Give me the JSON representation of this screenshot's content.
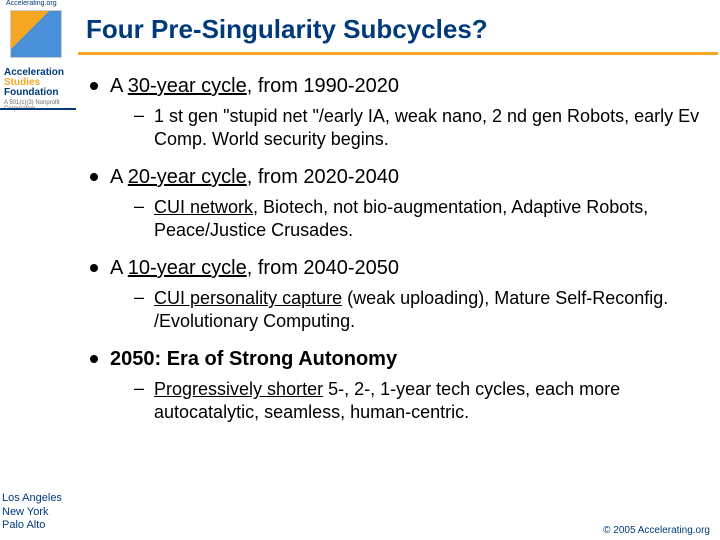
{
  "header": {
    "accelerating_label": "Accelerating.org"
  },
  "sidebar": {
    "org_line1": "Acceleration",
    "org_line2": "Studies",
    "org_line3": "Foundation",
    "org_line4": "A 501(c)(3) Nonprofit Corporation",
    "locations": [
      "Los Angeles",
      "New York",
      "Palo Alto"
    ]
  },
  "title": "Four Pre-Singularity Subcycles?",
  "bullets": [
    {
      "main_prefix": "A ",
      "main_underlined": "30-year cycle",
      "main_suffix": ", from 1990-2020",
      "sub": "1 st gen \"stupid net \"/early IA, weak nano, 2 nd gen Robots, early Ev Comp. World security begins."
    },
    {
      "main_prefix": "A ",
      "main_underlined": "20-year cycle",
      "main_suffix": ", from 2020-2040",
      "sub_underlined": "CUI network",
      "sub_rest": ", Biotech, not bio-augmentation, Adaptive Robots, Peace/Justice Crusades."
    },
    {
      "main_prefix": "A ",
      "main_underlined": "10-year cycle",
      "main_suffix": ", from 2040-2050",
      "sub_underlined": "CUI personality capture",
      "sub_rest": " (weak uploading), Mature Self-Reconfig. /Evolutionary Computing."
    },
    {
      "main_bold": "2050: Era of Strong Autonomy",
      "sub_underlined": "Progressively shorter",
      "sub_rest": " 5-, 2-, 1-year tech cycles, each more autocatalytic, seamless, human-centric."
    }
  ],
  "copyright": "© 2005 Accelerating.org",
  "colors": {
    "navy": "#003a7a",
    "orange": "#f5a623",
    "black": "#000000",
    "white": "#ffffff"
  }
}
